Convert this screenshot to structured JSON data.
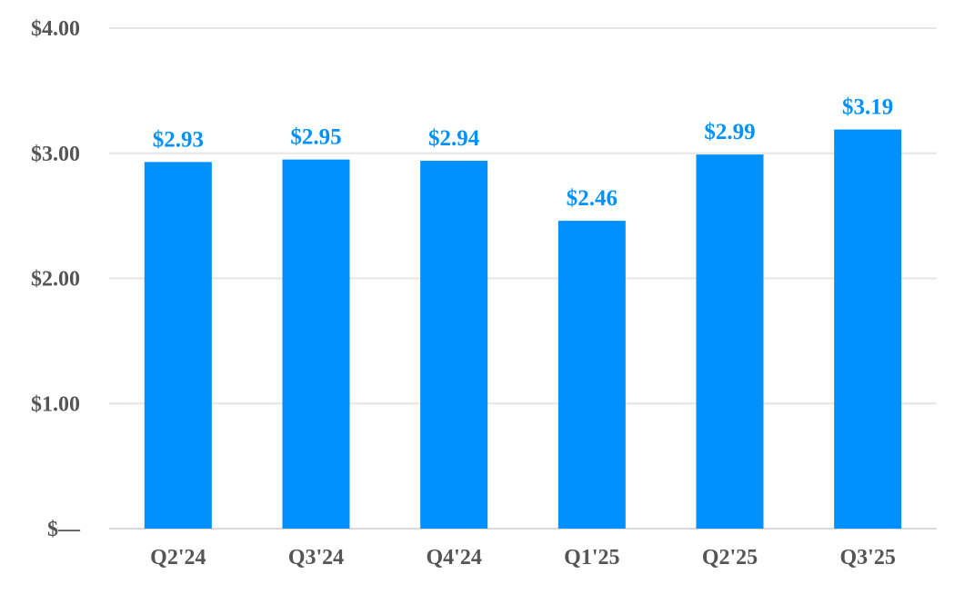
{
  "chart_data": {
    "type": "bar",
    "title": "",
    "xlabel": "",
    "ylabel": "",
    "categories": [
      "Q2'24",
      "Q3'24",
      "Q4'24",
      "Q1'25",
      "Q2'25",
      "Q3'25"
    ],
    "values": [
      2.93,
      2.95,
      2.94,
      2.46,
      2.99,
      3.19
    ],
    "data_labels": [
      "$2.93",
      "$2.95",
      "$2.94",
      "$2.46",
      "$2.99",
      "$3.19"
    ],
    "y_ticks": [
      0,
      1,
      2,
      3,
      4
    ],
    "y_tick_labels": [
      "$—",
      "$1.00",
      "$2.00",
      "$3.00",
      "$4.00"
    ],
    "ylim": [
      0,
      4
    ],
    "grid": true,
    "legend": "none",
    "colors": {
      "bar": "#0090ff",
      "data_label": "#0090ff",
      "axis_text": "#555555",
      "grid": "#e6e6e6",
      "axis_line": "#d9d9d9"
    }
  }
}
